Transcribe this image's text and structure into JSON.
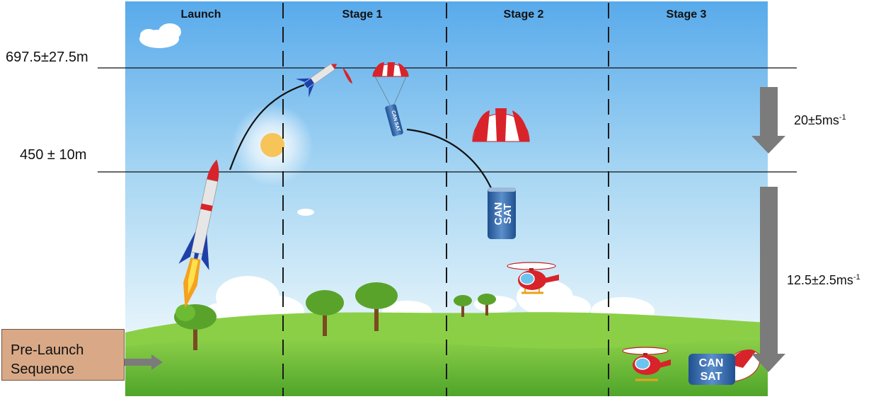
{
  "stages": [
    "Launch",
    "Stage 1",
    "Stage 2",
    "Stage 3"
  ],
  "altitudes": {
    "upper": "697.5±27.5m",
    "lower": "450 ± 10m"
  },
  "descent_rates": {
    "first": {
      "value": "20±5ms",
      "exponent": "-1"
    },
    "second": {
      "value": "12.5±2.5ms",
      "exponent": "-1"
    }
  },
  "prelaunch": {
    "label": "Pre-Launch\nSequence"
  },
  "cansat_text": [
    "CAN",
    "SAT"
  ],
  "colors": {
    "sky_top": "#5fb0ee",
    "sky_bottom": "#e6f4fb",
    "grass": "#6fbf3a",
    "arrow": "#7b7b7b",
    "prelaunch_box": "#d9a987",
    "rocket_blue": "#1f3fa8",
    "rocket_red": "#d8232a"
  }
}
